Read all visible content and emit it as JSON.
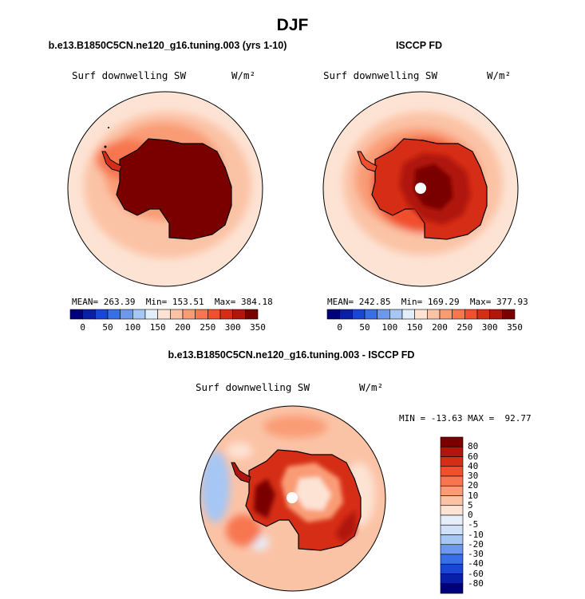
{
  "page_title": "DJF",
  "colors": {
    "abs_scale": [
      "#00007a",
      "#0a1fa8",
      "#1a46d6",
      "#3a6ee8",
      "#6d98ee",
      "#a6c6f4",
      "#e3eefb",
      "#fde3d4",
      "#fbc3a6",
      "#f99c76",
      "#f77650",
      "#f0502e",
      "#d62e16",
      "#b0160b",
      "#7a0000"
    ],
    "diff_scale": [
      "#00007a",
      "#0a1fa8",
      "#1a46d6",
      "#3a6ee8",
      "#6d98ee",
      "#a6c6f4",
      "#cfe0f8",
      "#e6eefa",
      "#fde3d4",
      "#fbc3a6",
      "#f99c76",
      "#f77650",
      "#f0502e",
      "#d62e16",
      "#b0160b",
      "#7a0000"
    ],
    "coast": "#000000"
  },
  "panels": [
    {
      "id": "model",
      "title": "b.e13.B1850C5CN.ne120_g16.tuning.003 (yrs 1-10)",
      "variable": "Surf downwelling SW",
      "units": "W/m²",
      "stats": {
        "mean_label": "MEAN=",
        "mean": "263.39",
        "min_label": "Min=",
        "min": "153.51",
        "max_label": "Max=",
        "max": "384.18"
      },
      "colorbar_ticks": [
        "0",
        "50",
        "100",
        "150",
        "200",
        "250",
        "300",
        "350"
      ]
    },
    {
      "id": "obs",
      "title": "ISCCP FD",
      "variable": "Surf downwelling SW",
      "units": "W/m²",
      "stats": {
        "mean_label": "MEAN=",
        "mean": "242.85",
        "min_label": "Min=",
        "min": "169.29",
        "max_label": "Max=",
        "max": "377.93"
      },
      "colorbar_ticks": [
        "0",
        "50",
        "100",
        "150",
        "200",
        "250",
        "300",
        "350"
      ]
    },
    {
      "id": "diff",
      "title": "b.e13.B1850C5CN.ne120_g16.tuning.003 - ISCCP FD",
      "variable": "Surf downwelling SW",
      "units": "W/m²",
      "stats_text": "MIN = -13.63 MAX =  92.77",
      "colorbar_ticks": [
        "80",
        "60",
        "40",
        "30",
        "20",
        "10",
        "5",
        "0",
        "-5",
        "-10",
        "-20",
        "-30",
        "-40",
        "-60",
        "-80"
      ]
    }
  ],
  "chart_data": [
    {
      "type": "heatmap",
      "title": "b.e13.B1850C5CN.ne120_g16.tuning.003 (yrs 1-10)",
      "projection": "south polar stereographic",
      "field": "Surf downwelling SW",
      "units": "W/m²",
      "mean": 263.39,
      "min": 153.51,
      "max": 384.18,
      "levels": [
        0,
        25,
        50,
        75,
        100,
        125,
        150,
        175,
        200,
        225,
        250,
        275,
        300,
        325,
        350
      ],
      "region_values": {
        "antarctic_interior": 370,
        "coast": 290,
        "ocean_near": 250,
        "ocean_far": 215
      }
    },
    {
      "type": "heatmap",
      "title": "ISCCP FD",
      "projection": "south polar stereographic",
      "field": "Surf downwelling SW",
      "units": "W/m²",
      "mean": 242.85,
      "min": 169.29,
      "max": 377.93,
      "levels": [
        0,
        25,
        50,
        75,
        100,
        125,
        150,
        175,
        200,
        225,
        250,
        275,
        300,
        325,
        350
      ],
      "region_values": {
        "antarctic_interior": 340,
        "coast": 280,
        "ocean_near": 230,
        "ocean_far": 205
      }
    },
    {
      "type": "heatmap",
      "title": "b.e13.B1850C5CN.ne120_g16.tuning.003 - ISCCP FD",
      "projection": "south polar stereographic",
      "field": "Surf downwelling SW",
      "units": "W/m²",
      "min": -13.63,
      "max": 92.77,
      "levels": [
        -80,
        -60,
        -40,
        -30,
        -20,
        -10,
        -5,
        0,
        5,
        10,
        20,
        30,
        40,
        60,
        80
      ],
      "region_values": {
        "coast": 60,
        "interior": 15,
        "ocean": 20,
        "far_ocean": 2
      }
    }
  ]
}
